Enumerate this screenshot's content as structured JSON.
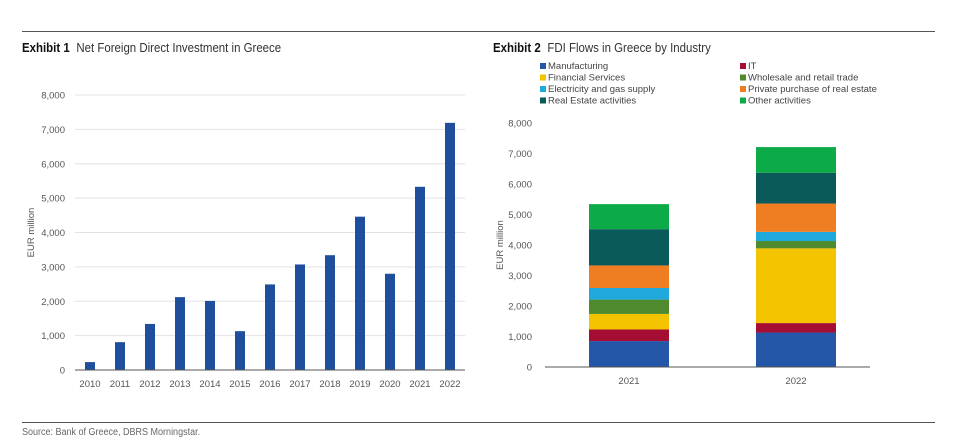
{
  "source": "Source: Bank of Greece, DBRS Morningstar.",
  "chart_data": [
    {
      "type": "bar",
      "exhibit_label": "Exhibit 1",
      "title": "Net Foreign Direct Investment in Greece",
      "xlabel": "",
      "ylabel": "EUR million",
      "ylim": [
        0,
        8000
      ],
      "yticks": [
        0,
        1000,
        2000,
        3000,
        4000,
        5000,
        6000,
        7000,
        8000
      ],
      "ytick_labels": [
        "0",
        "1,000",
        "2,000",
        "3,000",
        "4,000",
        "5,000",
        "6,000",
        "7,000",
        "8,000"
      ],
      "grid": true,
      "categories": [
        "2010",
        "2011",
        "2012",
        "2013",
        "2014",
        "2015",
        "2016",
        "2017",
        "2018",
        "2019",
        "2020",
        "2021",
        "2022"
      ],
      "values": [
        230,
        810,
        1340,
        2120,
        2010,
        1130,
        2490,
        3070,
        3340,
        4460,
        2800,
        5330,
        7190
      ],
      "color": "#1f4e9c"
    },
    {
      "type": "bar",
      "stacked": true,
      "exhibit_label": "Exhibit 2",
      "title": "FDI Flows in Greece by Industry",
      "xlabel": "",
      "ylabel": "EUR million",
      "ylim": [
        0,
        8000
      ],
      "yticks": [
        0,
        1000,
        2000,
        3000,
        4000,
        5000,
        6000,
        7000,
        8000
      ],
      "ytick_labels": [
        "0",
        "1,000",
        "2,000",
        "3,000",
        "4,000",
        "5,000",
        "6,000",
        "7,000",
        "8,000"
      ],
      "grid": false,
      "legend_position": "top",
      "categories": [
        "2021",
        "2022"
      ],
      "series": [
        {
          "name": "Manufacturing",
          "color": "#2457a8",
          "values": [
            850,
            1130
          ]
        },
        {
          "name": "IT",
          "color": "#a50d33",
          "values": [
            380,
            310
          ]
        },
        {
          "name": "Financial Services",
          "color": "#f5c400",
          "values": [
            510,
            2450
          ]
        },
        {
          "name": "Wholesale and retail trade",
          "color": "#4f8a2e",
          "values": [
            470,
            240
          ]
        },
        {
          "name": "Electricity and gas supply",
          "color": "#1fa9dc",
          "values": [
            380,
            300
          ]
        },
        {
          "name": "Private purchase of real estate",
          "color": "#ef7d22",
          "values": [
            740,
            930
          ]
        },
        {
          "name": "Real Estate activities",
          "color": "#0b5a5a",
          "values": [
            1190,
            1010
          ]
        },
        {
          "name": "Other activities",
          "color": "#0daa48",
          "values": [
            820,
            840
          ]
        }
      ],
      "legend_columns": [
        [
          "Manufacturing",
          "Financial Services",
          "Electricity and gas supply",
          "Real Estate activities"
        ],
        [
          "IT",
          "Wholesale and retail trade",
          "Private purchase of real estate",
          "Other activities"
        ]
      ]
    }
  ]
}
